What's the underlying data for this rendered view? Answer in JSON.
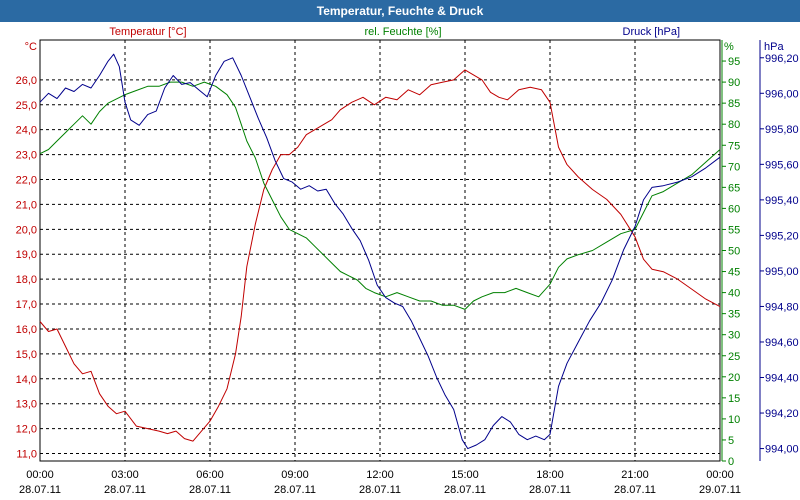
{
  "window": {
    "title": "Temperatur, Feuchte & Druck"
  },
  "colors": {
    "title_bar": "#2b6aa3",
    "temperature": "#c00000",
    "humidity": "#008000",
    "pressure": "#00008b",
    "grid": "#000000",
    "background": "#ffffff"
  },
  "chart_data": {
    "type": "line",
    "title": "Temperatur, Feuchte & Druck",
    "grid": true,
    "x_ticks": [
      {
        "time": "00:00",
        "date": "28.07.11"
      },
      {
        "time": "03:00",
        "date": "28.07.11"
      },
      {
        "time": "06:00",
        "date": "28.07.11"
      },
      {
        "time": "09:00",
        "date": "28.07.11"
      },
      {
        "time": "12:00",
        "date": "28.07.11"
      },
      {
        "time": "15:00",
        "date": "28.07.11"
      },
      {
        "time": "18:00",
        "date": "28.07.11"
      },
      {
        "time": "21:00",
        "date": "28.07.11"
      },
      {
        "time": "00:00",
        "date": "29.07.11"
      }
    ],
    "x_range_hours": [
      0,
      24
    ],
    "axes": {
      "temperature": {
        "label": "Temperatur [°C]",
        "unit": "°C",
        "ylim": [
          10.7,
          27.6
        ],
        "ticks": [
          "11,0",
          "12,0",
          "13,0",
          "14,0",
          "15,0",
          "16,0",
          "17,0",
          "18,0",
          "19,0",
          "20,0",
          "21,0",
          "22,0",
          "23,0",
          "24,0",
          "25,0",
          "26,0"
        ],
        "tick_values": [
          11,
          12,
          13,
          14,
          15,
          16,
          17,
          18,
          19,
          20,
          21,
          22,
          23,
          24,
          25,
          26
        ]
      },
      "humidity": {
        "label": "rel. Feuchte [%]",
        "unit": "%",
        "ylim": [
          0,
          100
        ],
        "ticks": [
          "0",
          "5",
          "10",
          "15",
          "20",
          "25",
          "30",
          "35",
          "40",
          "45",
          "50",
          "55",
          "60",
          "65",
          "70",
          "75",
          "80",
          "85",
          "90",
          "95"
        ],
        "tick_values": [
          0,
          5,
          10,
          15,
          20,
          25,
          30,
          35,
          40,
          45,
          50,
          55,
          60,
          65,
          70,
          75,
          80,
          85,
          90,
          95
        ]
      },
      "pressure": {
        "label": "Druck [hPa]",
        "unit": "hPa",
        "ylim": [
          993.93,
          996.3
        ],
        "ticks": [
          "994,00",
          "994,20",
          "994,40",
          "994,60",
          "994,80",
          "995,00",
          "995,20",
          "995,40",
          "995,60",
          "995,80",
          "996,00",
          "996,20"
        ],
        "tick_values": [
          994.0,
          994.2,
          994.4,
          994.6,
          994.8,
          995.0,
          995.2,
          995.4,
          995.6,
          995.8,
          996.0,
          996.2
        ]
      }
    },
    "series": [
      {
        "name": "Temperatur [°C]",
        "axis": "temperature",
        "color": "#c00000",
        "points": [
          [
            0,
            16.3
          ],
          [
            0.3,
            15.9
          ],
          [
            0.6,
            16.0
          ],
          [
            0.9,
            15.3
          ],
          [
            1.2,
            14.6
          ],
          [
            1.5,
            14.2
          ],
          [
            1.8,
            14.3
          ],
          [
            2.1,
            13.4
          ],
          [
            2.4,
            12.9
          ],
          [
            2.7,
            12.6
          ],
          [
            3.0,
            12.7
          ],
          [
            3.4,
            12.1
          ],
          [
            3.8,
            12.0
          ],
          [
            4.2,
            11.9
          ],
          [
            4.5,
            11.8
          ],
          [
            4.8,
            11.9
          ],
          [
            5.1,
            11.6
          ],
          [
            5.4,
            11.5
          ],
          [
            5.7,
            11.9
          ],
          [
            6.0,
            12.3
          ],
          [
            6.3,
            12.9
          ],
          [
            6.6,
            13.6
          ],
          [
            6.9,
            15.0
          ],
          [
            7.1,
            16.5
          ],
          [
            7.3,
            18.5
          ],
          [
            7.6,
            20.2
          ],
          [
            7.9,
            21.6
          ],
          [
            8.2,
            22.4
          ],
          [
            8.5,
            23.0
          ],
          [
            8.8,
            23.0
          ],
          [
            9.1,
            23.3
          ],
          [
            9.4,
            23.8
          ],
          [
            9.7,
            24.0
          ],
          [
            10.0,
            24.2
          ],
          [
            10.3,
            24.4
          ],
          [
            10.6,
            24.8
          ],
          [
            11.0,
            25.1
          ],
          [
            11.4,
            25.3
          ],
          [
            11.8,
            25.0
          ],
          [
            12.2,
            25.3
          ],
          [
            12.6,
            25.2
          ],
          [
            13.0,
            25.6
          ],
          [
            13.4,
            25.4
          ],
          [
            13.8,
            25.8
          ],
          [
            14.2,
            25.9
          ],
          [
            14.6,
            26.0
          ],
          [
            15.0,
            26.4
          ],
          [
            15.3,
            26.2
          ],
          [
            15.6,
            26.0
          ],
          [
            15.9,
            25.5
          ],
          [
            16.2,
            25.3
          ],
          [
            16.5,
            25.2
          ],
          [
            16.9,
            25.6
          ],
          [
            17.3,
            25.7
          ],
          [
            17.7,
            25.6
          ],
          [
            18.0,
            25.1
          ],
          [
            18.3,
            23.3
          ],
          [
            18.6,
            22.6
          ],
          [
            19.0,
            22.1
          ],
          [
            19.5,
            21.6
          ],
          [
            20.0,
            21.2
          ],
          [
            20.5,
            20.6
          ],
          [
            21.0,
            19.7
          ],
          [
            21.3,
            18.8
          ],
          [
            21.6,
            18.4
          ],
          [
            22.0,
            18.3
          ],
          [
            22.5,
            18.0
          ],
          [
            23.0,
            17.6
          ],
          [
            23.5,
            17.2
          ],
          [
            24.0,
            16.9
          ]
        ]
      },
      {
        "name": "rel. Feuchte [%]",
        "axis": "humidity",
        "color": "#008000",
        "points": [
          [
            0,
            73
          ],
          [
            0.3,
            74
          ],
          [
            0.6,
            76
          ],
          [
            0.9,
            78
          ],
          [
            1.2,
            80
          ],
          [
            1.5,
            82
          ],
          [
            1.8,
            80
          ],
          [
            2.1,
            83
          ],
          [
            2.4,
            85
          ],
          [
            2.7,
            86
          ],
          [
            3.0,
            87
          ],
          [
            3.4,
            88
          ],
          [
            3.8,
            89
          ],
          [
            4.2,
            89
          ],
          [
            4.6,
            90
          ],
          [
            5.0,
            90
          ],
          [
            5.4,
            89
          ],
          [
            5.8,
            90
          ],
          [
            6.2,
            89
          ],
          [
            6.6,
            87
          ],
          [
            6.9,
            84
          ],
          [
            7.1,
            80
          ],
          [
            7.3,
            76
          ],
          [
            7.6,
            72
          ],
          [
            7.9,
            66
          ],
          [
            8.2,
            62
          ],
          [
            8.5,
            58
          ],
          [
            8.8,
            55
          ],
          [
            9.1,
            54
          ],
          [
            9.4,
            53
          ],
          [
            9.7,
            51
          ],
          [
            10.0,
            49
          ],
          [
            10.3,
            47
          ],
          [
            10.6,
            45
          ],
          [
            10.9,
            44
          ],
          [
            11.2,
            43
          ],
          [
            11.5,
            41
          ],
          [
            11.8,
            40
          ],
          [
            12.2,
            39
          ],
          [
            12.6,
            40
          ],
          [
            13.0,
            39
          ],
          [
            13.4,
            38
          ],
          [
            13.8,
            38
          ],
          [
            14.2,
            37
          ],
          [
            14.6,
            37
          ],
          [
            15.0,
            36
          ],
          [
            15.3,
            38
          ],
          [
            15.6,
            39
          ],
          [
            16.0,
            40
          ],
          [
            16.4,
            40
          ],
          [
            16.8,
            41
          ],
          [
            17.2,
            40
          ],
          [
            17.6,
            39
          ],
          [
            18.0,
            42
          ],
          [
            18.3,
            46
          ],
          [
            18.6,
            48
          ],
          [
            19.0,
            49
          ],
          [
            19.5,
            50
          ],
          [
            20.0,
            52
          ],
          [
            20.5,
            54
          ],
          [
            21.0,
            55
          ],
          [
            21.3,
            59
          ],
          [
            21.6,
            63
          ],
          [
            22.0,
            64
          ],
          [
            22.5,
            66
          ],
          [
            23.0,
            68
          ],
          [
            23.5,
            71
          ],
          [
            24.0,
            74
          ]
        ]
      },
      {
        "name": "Druck [hPa]",
        "axis": "pressure",
        "color": "#00008b",
        "points": [
          [
            0,
            995.95
          ],
          [
            0.3,
            996.0
          ],
          [
            0.6,
            995.97
          ],
          [
            0.9,
            996.03
          ],
          [
            1.2,
            996.01
          ],
          [
            1.5,
            996.05
          ],
          [
            1.8,
            996.03
          ],
          [
            2.1,
            996.1
          ],
          [
            2.4,
            996.18
          ],
          [
            2.6,
            996.22
          ],
          [
            2.8,
            996.15
          ],
          [
            3.0,
            995.95
          ],
          [
            3.2,
            995.85
          ],
          [
            3.5,
            995.82
          ],
          [
            3.8,
            995.88
          ],
          [
            4.1,
            995.9
          ],
          [
            4.4,
            996.03
          ],
          [
            4.7,
            996.1
          ],
          [
            5.0,
            996.05
          ],
          [
            5.3,
            996.06
          ],
          [
            5.6,
            996.02
          ],
          [
            5.9,
            995.98
          ],
          [
            6.2,
            996.1
          ],
          [
            6.5,
            996.18
          ],
          [
            6.8,
            996.2
          ],
          [
            7.1,
            996.1
          ],
          [
            7.4,
            995.98
          ],
          [
            7.7,
            995.86
          ],
          [
            8.0,
            995.75
          ],
          [
            8.3,
            995.62
          ],
          [
            8.6,
            995.52
          ],
          [
            8.9,
            995.5
          ],
          [
            9.2,
            995.46
          ],
          [
            9.5,
            995.48
          ],
          [
            9.8,
            995.45
          ],
          [
            10.1,
            995.46
          ],
          [
            10.4,
            995.38
          ],
          [
            10.7,
            995.32
          ],
          [
            11.0,
            995.24
          ],
          [
            11.3,
            995.17
          ],
          [
            11.6,
            995.06
          ],
          [
            11.9,
            994.92
          ],
          [
            12.2,
            994.85
          ],
          [
            12.5,
            994.82
          ],
          [
            12.8,
            994.8
          ],
          [
            13.1,
            994.72
          ],
          [
            13.4,
            994.62
          ],
          [
            13.7,
            994.52
          ],
          [
            14.0,
            994.4
          ],
          [
            14.3,
            994.3
          ],
          [
            14.6,
            994.22
          ],
          [
            14.9,
            994.05
          ],
          [
            15.1,
            994.0
          ],
          [
            15.4,
            994.02
          ],
          [
            15.7,
            994.05
          ],
          [
            16.0,
            994.13
          ],
          [
            16.3,
            994.18
          ],
          [
            16.6,
            994.15
          ],
          [
            16.9,
            994.08
          ],
          [
            17.2,
            994.05
          ],
          [
            17.5,
            994.07
          ],
          [
            17.8,
            994.05
          ],
          [
            18.0,
            994.08
          ],
          [
            18.3,
            994.35
          ],
          [
            18.6,
            994.48
          ],
          [
            19.0,
            994.6
          ],
          [
            19.4,
            994.72
          ],
          [
            19.8,
            994.82
          ],
          [
            20.2,
            994.95
          ],
          [
            20.6,
            995.12
          ],
          [
            21.0,
            995.25
          ],
          [
            21.3,
            995.4
          ],
          [
            21.6,
            995.47
          ],
          [
            22.0,
            995.48
          ],
          [
            22.5,
            995.5
          ],
          [
            23.0,
            995.53
          ],
          [
            23.5,
            995.58
          ],
          [
            24.0,
            995.64
          ]
        ]
      }
    ]
  }
}
